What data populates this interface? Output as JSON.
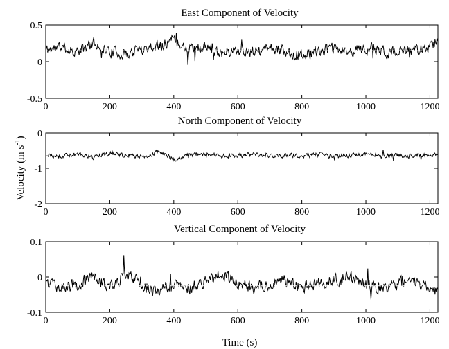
{
  "chart_data": [
    {
      "type": "line",
      "title": "East Component of Velocity",
      "xlim": [
        0,
        1225
      ],
      "ylim": [
        -0.5,
        0.5
      ],
      "xticks": [
        0,
        200,
        400,
        600,
        800,
        1000,
        1200
      ],
      "xtick_labels": [
        "0",
        "200",
        "400",
        "600",
        "800",
        "1000",
        "1200"
      ],
      "yticks": [
        -0.5,
        0,
        0.5
      ],
      "ytick_labels": [
        "-0.5",
        "0",
        "0.5"
      ],
      "grid": false,
      "series": [
        {
          "color": "#000000",
          "mean": 0.15,
          "spread": 0.07,
          "x_step": 2,
          "x": [
            0,
            50,
            100,
            150,
            200,
            250,
            300,
            350,
            400,
            450,
            500,
            550,
            600,
            650,
            700,
            750,
            800,
            850,
            900,
            950,
            1000,
            1050,
            1100,
            1150,
            1200,
            1225
          ],
          "y": [
            0.16,
            0.2,
            0.13,
            0.25,
            0.14,
            0.1,
            0.18,
            0.22,
            0.3,
            0.17,
            0.19,
            0.13,
            0.16,
            0.12,
            0.18,
            0.14,
            0.08,
            0.15,
            0.17,
            0.13,
            0.19,
            0.14,
            0.12,
            0.16,
            0.18,
            0.3
          ]
        }
      ],
      "reference_line": {
        "y": 0.15,
        "color": "#ffffff",
        "style": "dashed"
      }
    },
    {
      "type": "line",
      "title": "North Component of Velocity",
      "ylabel": "Velocity (m s",
      "ylabel_sup": "-1",
      "ylabel_end": ")",
      "xlim": [
        0,
        1225
      ],
      "ylim": [
        -2,
        0
      ],
      "xticks": [
        0,
        200,
        400,
        600,
        800,
        1000,
        1200
      ],
      "xtick_labels": [
        "0",
        "200",
        "400",
        "600",
        "800",
        "1000",
        "1200"
      ],
      "yticks": [
        -2,
        -1,
        0
      ],
      "ytick_labels": [
        "-2",
        "-1",
        "0"
      ],
      "grid": false,
      "series": [
        {
          "color": "#000000",
          "mean": -0.65,
          "spread": 0.06,
          "x_step": 2,
          "x": [
            0,
            50,
            100,
            150,
            200,
            250,
            300,
            350,
            400,
            450,
            500,
            550,
            600,
            650,
            700,
            750,
            800,
            850,
            900,
            950,
            1000,
            1050,
            1100,
            1150,
            1200,
            1225
          ],
          "y": [
            -0.62,
            -0.66,
            -0.6,
            -0.7,
            -0.58,
            -0.64,
            -0.68,
            -0.55,
            -0.75,
            -0.62,
            -0.6,
            -0.66,
            -0.64,
            -0.61,
            -0.67,
            -0.63,
            -0.65,
            -0.62,
            -0.66,
            -0.64,
            -0.61,
            -0.66,
            -0.63,
            -0.65,
            -0.62,
            -0.6
          ]
        }
      ],
      "reference_line": {
        "y": -0.66,
        "color": "#ffffff",
        "style": "dashed"
      }
    },
    {
      "type": "line",
      "title": "Vertical Component of Velocity",
      "xlabel": "Time (s)",
      "xlim": [
        0,
        1225
      ],
      "ylim": [
        -0.1,
        0.1
      ],
      "xticks": [
        0,
        200,
        400,
        600,
        800,
        1000,
        1200
      ],
      "xtick_labels": [
        "0",
        "200",
        "400",
        "600",
        "800",
        "1000",
        "1200"
      ],
      "yticks": [
        -0.1,
        0,
        0.1
      ],
      "ytick_labels": [
        "-0.1",
        "0",
        "0.1"
      ],
      "grid": false,
      "series": [
        {
          "color": "#000000",
          "mean": -0.02,
          "spread": 0.016,
          "x_step": 2,
          "x": [
            0,
            50,
            100,
            150,
            200,
            250,
            300,
            350,
            400,
            450,
            500,
            550,
            600,
            650,
            700,
            750,
            800,
            850,
            900,
            950,
            1000,
            1050,
            1100,
            1150,
            1200,
            1225
          ],
          "y": [
            -0.01,
            -0.03,
            -0.02,
            0.0,
            -0.03,
            0.01,
            -0.02,
            -0.04,
            -0.02,
            -0.03,
            -0.01,
            0.01,
            -0.02,
            -0.03,
            -0.02,
            -0.01,
            -0.03,
            -0.02,
            -0.01,
            0.0,
            -0.02,
            -0.03,
            -0.02,
            -0.01,
            -0.03,
            -0.04
          ]
        }
      ],
      "reference_line": {
        "y": -0.025,
        "color": "#ffffff",
        "style": "dashed"
      }
    }
  ]
}
